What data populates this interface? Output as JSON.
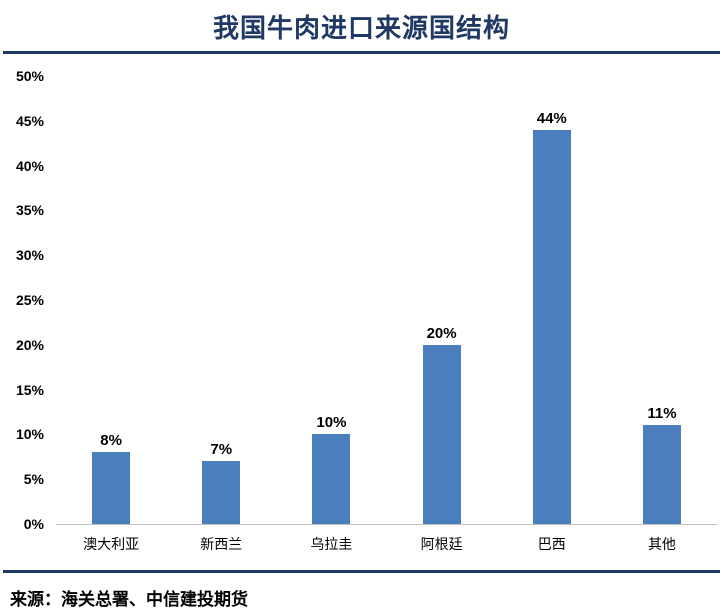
{
  "title": "我国牛肉进口来源国结构",
  "source": "来源：海关总署、中信建投期货",
  "colors": {
    "bar": "#4a7ebc",
    "title": "#1f3864",
    "divider": "#1f3864",
    "axis_line": "#bfbfbf"
  },
  "chart_data": {
    "type": "bar",
    "title": "我国牛肉进口来源国结构",
    "categories": [
      "澳大利亚",
      "新西兰",
      "乌拉圭",
      "阿根廷",
      "巴西",
      "其他"
    ],
    "values": [
      8,
      7,
      10,
      20,
      44,
      11
    ],
    "value_labels": [
      "8%",
      "7%",
      "10%",
      "20%",
      "44%",
      "11%"
    ],
    "xlabel": "",
    "ylabel": "",
    "ylim": [
      0,
      50
    ],
    "ytick_step": 5,
    "ytick_labels": [
      "0%",
      "5%",
      "10%",
      "15%",
      "20%",
      "25%",
      "30%",
      "35%",
      "40%",
      "45%",
      "50%"
    ],
    "grid": false,
    "legend": false,
    "bar_color": "#4a7ebc"
  }
}
